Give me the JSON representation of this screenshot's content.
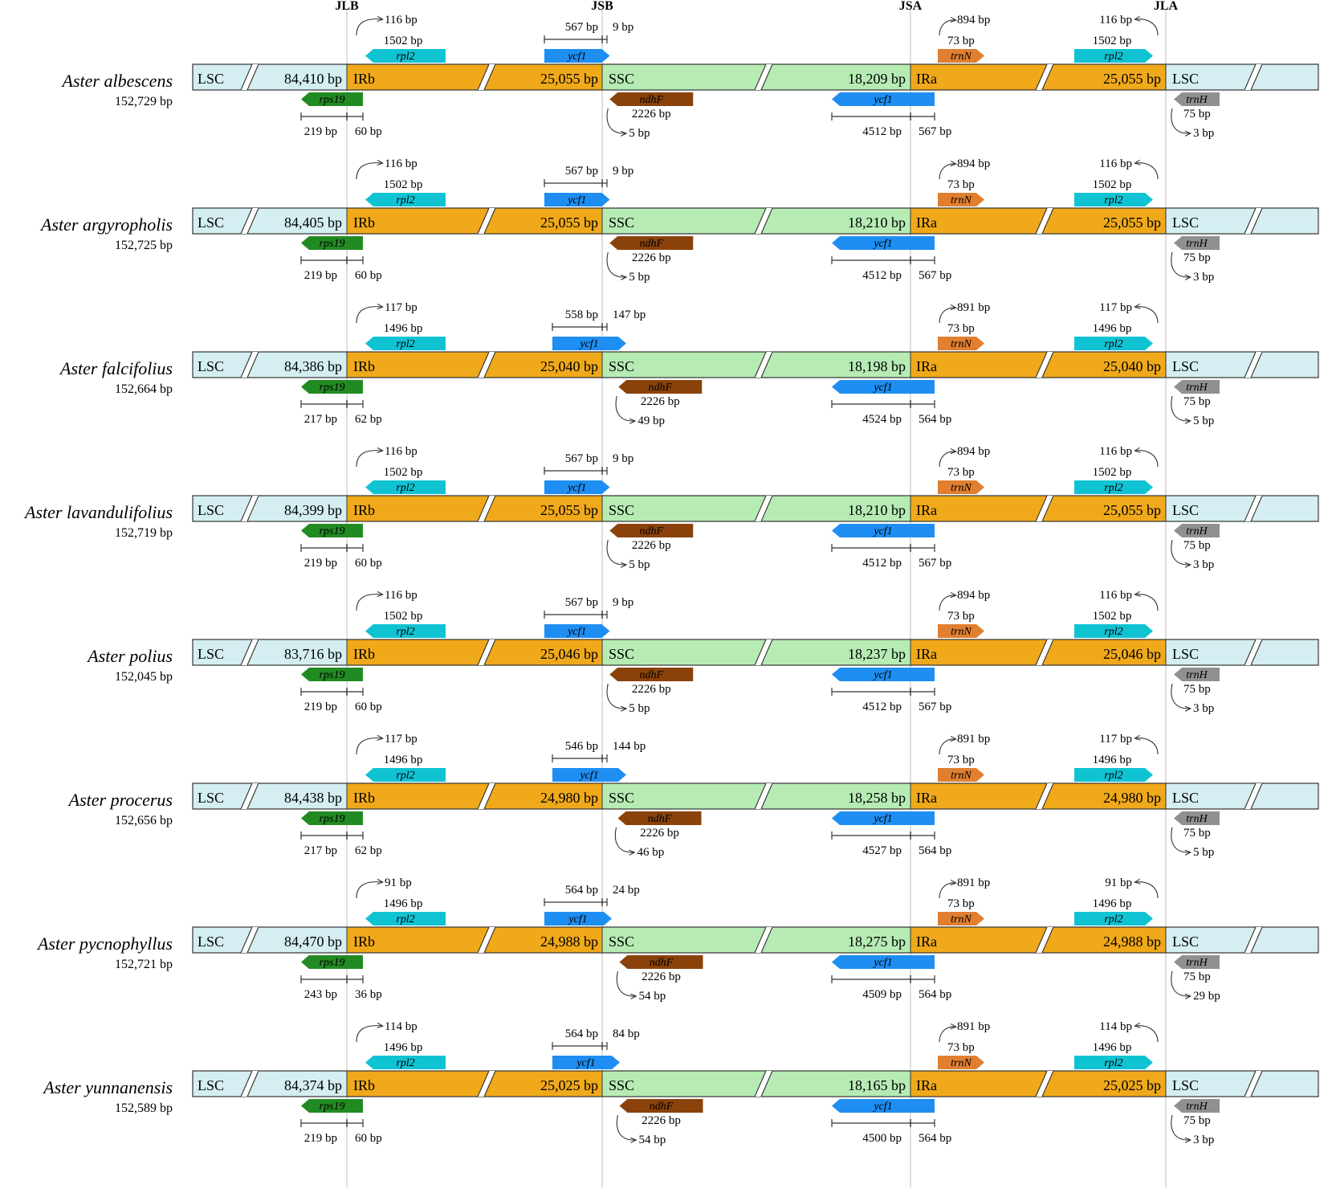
{
  "junctions": [
    "JLB",
    "JSB",
    "JSA",
    "JLA"
  ],
  "region_labels": {
    "lsc": "LSC",
    "irb": "IRb",
    "ssc": "SSC",
    "ira": "IRa"
  },
  "gene_names": {
    "rpl2": "rpl2",
    "ycf1": "ycf1",
    "trnN": "trnN",
    "rps19": "rps19",
    "ndhF": "ndhF",
    "trnH": "trnH"
  },
  "colors": {
    "lsc": "#d4eef2",
    "ir": "#f0a91a",
    "ssc": "#b6ecb4",
    "rpl2": "#10c3d2",
    "ycf1": "#1e8ef2",
    "trnN": "#e07f30",
    "rps19": "#228a22",
    "ndhF": "#8a420a",
    "trnH": "#909090",
    "guide": "#c8c8c8",
    "outline": "#333333"
  },
  "species": [
    {
      "name": "Aster albescens",
      "genome": "152,729 bp",
      "lsc": "84,410 bp",
      "ir": "25,055 bp",
      "ssc": "18,209 bp",
      "rpl2_left": "116 bp",
      "rpl2_len": "1502 bp",
      "ycf1_in_ir": "567 bp",
      "ycf1_in_ssc": "9 bp",
      "trnN_dist": "894 bp",
      "trnN_len": "73 bp",
      "rpl2_right": "116 bp",
      "rps19_lsc": "219 bp",
      "rps19_ir": "60 bp",
      "ndhF_len": "2226 bp",
      "ndhF_dist": "5 bp",
      "ycf1_ssc": "4512 bp",
      "ycf1_ira": "567 bp",
      "trnH_len": "75 bp",
      "trnH_dist": "3 bp"
    },
    {
      "name": "Aster argyropholis",
      "genome": "152,725 bp",
      "lsc": "84,405 bp",
      "ir": "25,055 bp",
      "ssc": "18,210 bp",
      "rpl2_left": "116 bp",
      "rpl2_len": "1502 bp",
      "ycf1_in_ir": "567 bp",
      "ycf1_in_ssc": "9 bp",
      "trnN_dist": "894 bp",
      "trnN_len": "73 bp",
      "rpl2_right": "116 bp",
      "rps19_lsc": "219 bp",
      "rps19_ir": "60 bp",
      "ndhF_len": "2226 bp",
      "ndhF_dist": "5 bp",
      "ycf1_ssc": "4512 bp",
      "ycf1_ira": "567 bp",
      "trnH_len": "75 bp",
      "trnH_dist": "3 bp"
    },
    {
      "name": "Aster falcifolius",
      "genome": "152,664 bp",
      "lsc": "84,386 bp",
      "ir": "25,040 bp",
      "ssc": "18,198 bp",
      "rpl2_left": "117 bp",
      "rpl2_len": "1496 bp",
      "ycf1_in_ir": "558 bp",
      "ycf1_in_ssc": "147 bp",
      "trnN_dist": "891 bp",
      "trnN_len": "73 bp",
      "rpl2_right": "117 bp",
      "rps19_lsc": "217 bp",
      "rps19_ir": "62 bp",
      "ndhF_len": "2226 bp",
      "ndhF_dist": "49 bp",
      "ycf1_ssc": "4524 bp",
      "ycf1_ira": "564 bp",
      "trnH_len": "75 bp",
      "trnH_dist": "5 bp"
    },
    {
      "name": "Aster lavandulifolius",
      "genome": "152,719 bp",
      "lsc": "84,399 bp",
      "ir": "25,055 bp",
      "ssc": "18,210 bp",
      "rpl2_left": "116 bp",
      "rpl2_len": "1502 bp",
      "ycf1_in_ir": "567 bp",
      "ycf1_in_ssc": "9 bp",
      "trnN_dist": "894 bp",
      "trnN_len": "73 bp",
      "rpl2_right": "116 bp",
      "rps19_lsc": "219 bp",
      "rps19_ir": "60 bp",
      "ndhF_len": "2226 bp",
      "ndhF_dist": "5 bp",
      "ycf1_ssc": "4512 bp",
      "ycf1_ira": "567 bp",
      "trnH_len": "75 bp",
      "trnH_dist": "3 bp"
    },
    {
      "name": "Aster polius",
      "genome": "152,045 bp",
      "lsc": "83,716 bp",
      "ir": "25,046 bp",
      "ssc": "18,237 bp",
      "rpl2_left": "116 bp",
      "rpl2_len": "1502 bp",
      "ycf1_in_ir": "567 bp",
      "ycf1_in_ssc": "9 bp",
      "trnN_dist": "894 bp",
      "trnN_len": "73 bp",
      "rpl2_right": "116 bp",
      "rps19_lsc": "219 bp",
      "rps19_ir": "60 bp",
      "ndhF_len": "2226 bp",
      "ndhF_dist": "5 bp",
      "ycf1_ssc": "4512 bp",
      "ycf1_ira": "567 bp",
      "trnH_len": "75 bp",
      "trnH_dist": "3 bp"
    },
    {
      "name": "Aster procerus",
      "genome": "152,656 bp",
      "lsc": "84,438 bp",
      "ir": "24,980 bp",
      "ssc": "18,258 bp",
      "rpl2_left": "117 bp",
      "rpl2_len": "1496 bp",
      "ycf1_in_ir": "546 bp",
      "ycf1_in_ssc": "144 bp",
      "trnN_dist": "891 bp",
      "trnN_len": "73 bp",
      "rpl2_right": "117 bp",
      "rps19_lsc": "217 bp",
      "rps19_ir": "62 bp",
      "ndhF_len": "2226 bp",
      "ndhF_dist": "46 bp",
      "ycf1_ssc": "4527 bp",
      "ycf1_ira": "564 bp",
      "trnH_len": "75 bp",
      "trnH_dist": "5 bp"
    },
    {
      "name": "Aster pycnophyllus",
      "genome": "152,721 bp",
      "lsc": "84,470 bp",
      "ir": "24,988 bp",
      "ssc": "18,275 bp",
      "rpl2_left": "91 bp",
      "rpl2_len": "1496 bp",
      "ycf1_in_ir": "564 bp",
      "ycf1_in_ssc": "24 bp",
      "trnN_dist": "891 bp",
      "trnN_len": "73 bp",
      "rpl2_right": "91 bp",
      "rps19_lsc": "243 bp",
      "rps19_ir": "36 bp",
      "ndhF_len": "2226 bp",
      "ndhF_dist": "54 bp",
      "ycf1_ssc": "4509 bp",
      "ycf1_ira": "564 bp",
      "trnH_len": "75 bp",
      "trnH_dist": "29 bp"
    },
    {
      "name": "Aster yunnanensis",
      "genome": "152,589 bp",
      "lsc": "84,374 bp",
      "ir": "25,025 bp",
      "ssc": "18,165 bp",
      "rpl2_left": "114 bp",
      "rpl2_len": "1496 bp",
      "ycf1_in_ir": "564 bp",
      "ycf1_in_ssc": "84 bp",
      "trnN_dist": "891 bp",
      "trnN_len": "73 bp",
      "rpl2_right": "114 bp",
      "rps19_lsc": "219 bp",
      "rps19_ir": "60 bp",
      "ndhF_len": "2226 bp",
      "ndhF_dist": "54 bp",
      "ycf1_ssc": "4500 bp",
      "ycf1_ira": "564 bp",
      "trnH_len": "75 bp",
      "trnH_dist": "3 bp"
    }
  ]
}
